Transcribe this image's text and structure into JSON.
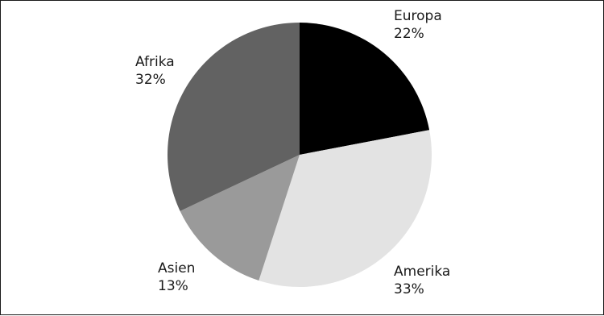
{
  "chart_data": {
    "type": "pie",
    "title": "",
    "start_angle_deg": 0,
    "direction": "clockwise",
    "slices": [
      {
        "label": "Europa",
        "percent_text": "22%",
        "value": 22,
        "color": "#000000"
      },
      {
        "label": "Amerika",
        "percent_text": "33%",
        "value": 33,
        "color": "#e3e3e3"
      },
      {
        "label": "Asien",
        "percent_text": "13%",
        "value": 13,
        "color": "#9a9a9a"
      },
      {
        "label": "Afrika",
        "percent_text": "32%",
        "value": 32,
        "color": "#626262"
      }
    ],
    "legend": "none",
    "labels": "outside"
  }
}
